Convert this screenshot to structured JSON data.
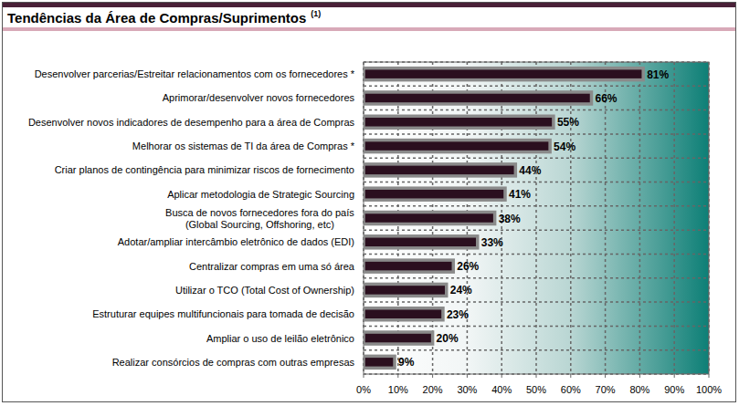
{
  "chart_data": {
    "type": "bar",
    "orientation": "horizontal",
    "title": "Tendências da Área de Compras/Suprimentos",
    "annotations": [
      "(1)"
    ],
    "categories": [
      "Desenvolver parcerias/Estreitar relacionamentos com os fornecedores *",
      "Aprimorar/desenvolver novos fornecedores",
      "Desenvolver novos indicadores de desempenho para a área de Compras",
      "Melhorar os sistemas de TI da área de Compras *",
      "Criar planos de contingência para minimizar riscos de fornecimento",
      "Aplicar metodologia de Strategic Sourcing",
      "Busca de novos fornecedores fora do país\n(Global Sourcing, Offshoring, etc)",
      "Adotar/ampliar intercâmbio eletrônico de dados (EDI)",
      "Centralizar compras em uma só área",
      "Utilizar o TCO (Total Cost of Ownership)",
      "Estruturar equipes multifuncionais para tomada de decisão",
      "Ampliar o uso de leilão eletrônico",
      "Realizar consórcios de compras com outras empresas"
    ],
    "values": [
      81,
      66,
      55,
      54,
      44,
      41,
      38,
      33,
      26,
      24,
      23,
      20,
      9
    ],
    "value_labels": [
      "81%",
      "66%",
      "55%",
      "54%",
      "44%",
      "41%",
      "38%",
      "33%",
      "26%",
      "24%",
      "23%",
      "20%",
      "9%"
    ],
    "data_labels": true,
    "color": "#2b0f1f",
    "xlim": [
      0,
      100
    ],
    "xticks": [
      {
        "value": 0,
        "label": "0%"
      },
      {
        "value": 10,
        "label": "10%"
      },
      {
        "value": 20,
        "label": "20%"
      },
      {
        "value": 30,
        "label": "30%"
      },
      {
        "value": 40,
        "label": "40%"
      },
      {
        "value": 50,
        "label": "50%"
      },
      {
        "value": 60,
        "label": "60%"
      },
      {
        "value": 70,
        "label": "70%"
      },
      {
        "value": 80,
        "label": "80%"
      },
      {
        "value": 90,
        "label": "90%"
      },
      {
        "value": 100,
        "label": "100%"
      }
    ],
    "grid": true
  }
}
